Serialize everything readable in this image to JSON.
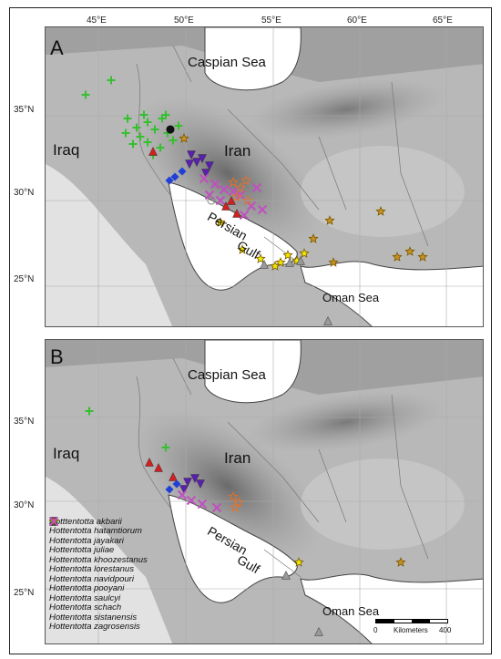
{
  "panels": [
    {
      "letter": "A"
    },
    {
      "letter": "B"
    }
  ],
  "lon_ticks": [
    "45°E",
    "50°E",
    "55°E",
    "60°E",
    "65°E"
  ],
  "lat_ticks_a": [
    "35°N",
    "30°N",
    "25°N"
  ],
  "lat_ticks_b": [
    "35°N",
    "30°N",
    "25°N"
  ],
  "places": {
    "caspian": "Caspian Sea",
    "iraq": "Iraq",
    "iran": "Iran",
    "gulf_1": "Persian",
    "gulf_2": "Gulf",
    "oman": "Oman Sea"
  },
  "legend": [
    {
      "name": "Hotttentotta akbarii",
      "symbol": "circle-open",
      "color": "#888888"
    },
    {
      "name": "Hottentotta hatamtiorum",
      "symbol": "triangle",
      "color": "#d22020"
    },
    {
      "name": "Hottentotta jayakari",
      "symbol": "triangle",
      "color": "#999999"
    },
    {
      "name": "Hottentotta juliae",
      "symbol": "star-open",
      "color": "#f07020"
    },
    {
      "name": "Hottentotta khoozestanus",
      "symbol": "diamond",
      "color": "#1f3fd8"
    },
    {
      "name": "Hottentotta lorestanus",
      "symbol": "circle",
      "color": "#111111"
    },
    {
      "name": "Hottentotta navidpouri",
      "symbol": "star",
      "color": "#f2e800"
    },
    {
      "name": "Hottentotta pooyani",
      "symbol": "circle-open",
      "color": "#333333"
    },
    {
      "name": "Hottentotta saulcyi",
      "symbol": "plus",
      "color": "#36c030"
    },
    {
      "name": "Hottentotta schach",
      "symbol": "triangle-down",
      "color": "#5a1fb0"
    },
    {
      "name": "Hottentotta sistanensis",
      "symbol": "star",
      "color": "#c89020"
    },
    {
      "name": "Hottentotta zagrosensis",
      "symbol": "cross",
      "color": "#c050c0"
    }
  ],
  "scale": {
    "zero": "0",
    "unit": "Kilometers",
    "max": "400"
  }
}
